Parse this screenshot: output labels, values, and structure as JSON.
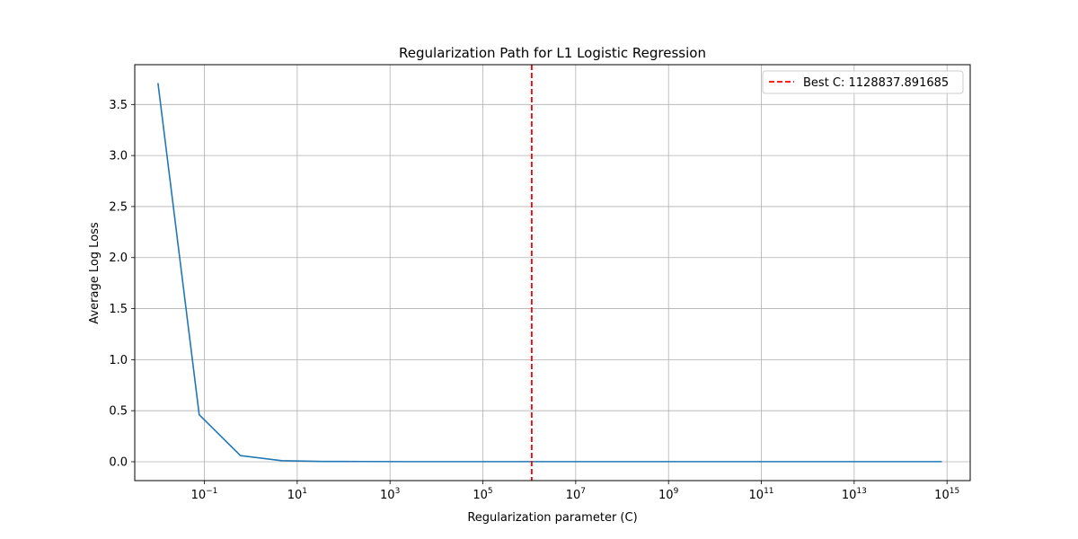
{
  "chart_data": {
    "type": "line",
    "title": "Regularization Path for L1 Logistic Regression",
    "xlabel": "Regularization parameter (C)",
    "ylabel": "Average Log Loss",
    "x_scale": "log",
    "xlim": [
      0.00316,
      3160000000000000.0
    ],
    "ylim": [
      -0.185,
      3.89
    ],
    "grid": true,
    "legend_position": "upper right",
    "x_ticks": [
      {
        "base": "10",
        "exp": "−1",
        "value": 0.1
      },
      {
        "base": "10",
        "exp": "1",
        "value": 10
      },
      {
        "base": "10",
        "exp": "3",
        "value": 1000
      },
      {
        "base": "10",
        "exp": "5",
        "value": 100000
      },
      {
        "base": "10",
        "exp": "7",
        "value": 10000000
      },
      {
        "base": "10",
        "exp": "9",
        "value": 1000000000
      },
      {
        "base": "10",
        "exp": "11",
        "value": 100000000000
      },
      {
        "base": "10",
        "exp": "13",
        "value": 10000000000000
      },
      {
        "base": "10",
        "exp": "15",
        "value": 1000000000000000
      }
    ],
    "y_ticks": [
      "0.0",
      "0.5",
      "1.0",
      "1.5",
      "2.0",
      "2.5",
      "3.0",
      "3.5"
    ],
    "y_tick_values": [
      0.0,
      0.5,
      1.0,
      1.5,
      2.0,
      2.5,
      3.0,
      3.5
    ],
    "series": [
      {
        "name": "",
        "color": "#1f77b4",
        "x": [
          0.01,
          0.0774,
          0.599,
          4.64,
          35.9,
          278,
          2154,
          16681,
          129155,
          1000000,
          7742637,
          59948425,
          464158883,
          3593813664,
          27825594022,
          215443469003,
          1668100537200,
          12915496650149,
          100000000000000,
          774263682681127
        ],
        "y": [
          3.71,
          0.46,
          0.06,
          0.01,
          0.003,
          0.002,
          0.001,
          0.001,
          0.001,
          0.001,
          0.001,
          0.001,
          0.001,
          0.001,
          0.001,
          0.001,
          0.001,
          0.001,
          0.001,
          0.001
        ]
      }
    ],
    "best_line": {
      "label": "Best C: 1128837.891685",
      "x": 1128837.891685,
      "color": "#ff0000"
    }
  }
}
